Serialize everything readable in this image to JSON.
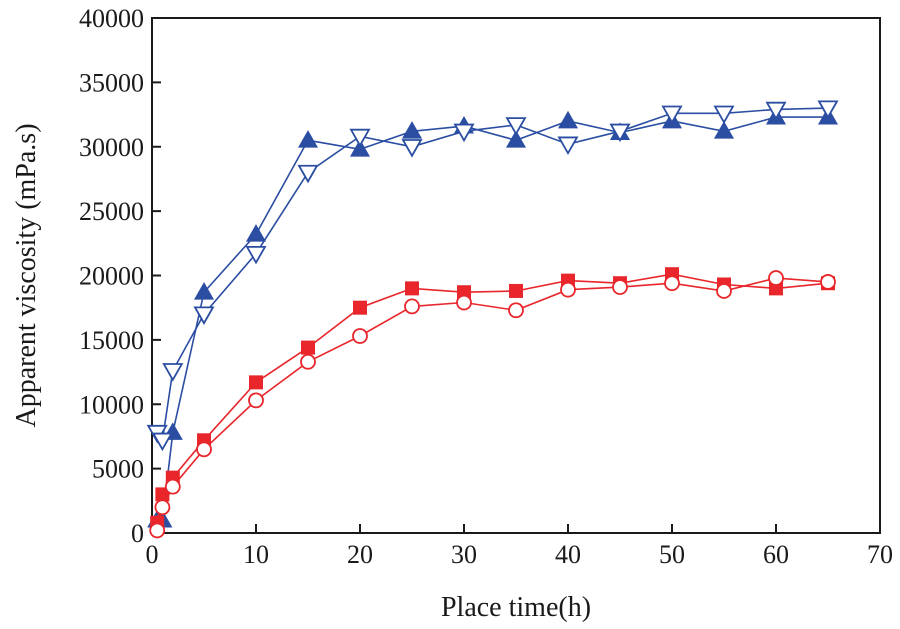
{
  "chart_data": {
    "type": "line",
    "title": "",
    "xlabel": "Place time(h)",
    "ylabel": "Apparent viscosity (mPa.s)",
    "xlim": [
      0,
      70
    ],
    "ylim": [
      0,
      40000
    ],
    "xticks": [
      0,
      10,
      20,
      30,
      40,
      50,
      60,
      70
    ],
    "yticks": [
      0,
      5000,
      10000,
      15000,
      20000,
      25000,
      30000,
      35000,
      40000
    ],
    "grid": false,
    "legend": "none",
    "series": [
      {
        "name": "Filled triangle series",
        "color": "#2b4ea2",
        "marker": "triangle-up-filled",
        "x": [
          0.5,
          1,
          2,
          5,
          10,
          15,
          20,
          25,
          30,
          35,
          40,
          45,
          50,
          55,
          60,
          65
        ],
        "y": [
          1000,
          1000,
          7800,
          18700,
          23200,
          30500,
          29800,
          31200,
          31600,
          30500,
          32000,
          31100,
          32000,
          31200,
          32300,
          32300
        ]
      },
      {
        "name": "Open inverted triangle series",
        "color": "#2b4ea2",
        "marker": "triangle-down-open",
        "x": [
          0.5,
          1,
          2,
          5,
          10,
          15,
          20,
          25,
          30,
          35,
          40,
          45,
          50,
          55,
          60,
          65
        ],
        "y": [
          7800,
          7200,
          12600,
          17000,
          21700,
          28000,
          30800,
          30000,
          31200,
          31700,
          30200,
          31200,
          32600,
          32600,
          32900,
          33000
        ]
      },
      {
        "name": "Filled square series",
        "color": "#e8262b",
        "marker": "square-filled",
        "x": [
          0.5,
          1,
          2,
          5,
          10,
          15,
          20,
          25,
          30,
          35,
          40,
          45,
          50,
          55,
          60,
          65
        ],
        "y": [
          800,
          3000,
          4300,
          7200,
          11700,
          14400,
          17500,
          19000,
          18700,
          18800,
          19600,
          19400,
          20100,
          19300,
          19000,
          19400
        ]
      },
      {
        "name": "Open circle series",
        "color": "#e8262b",
        "marker": "circle-open",
        "x": [
          0.5,
          1,
          2,
          5,
          10,
          15,
          20,
          25,
          30,
          35,
          40,
          45,
          50,
          55,
          60,
          65
        ],
        "y": [
          200,
          2000,
          3600,
          6500,
          10300,
          13300,
          15300,
          17600,
          17900,
          17300,
          18900,
          19100,
          19400,
          18800,
          19800,
          19500
        ]
      }
    ]
  }
}
